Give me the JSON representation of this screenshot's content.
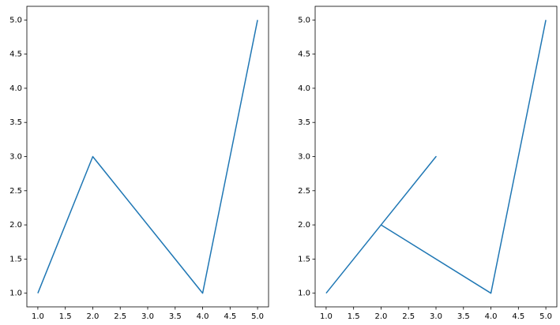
{
  "chart_data": [
    {
      "type": "line",
      "color": "#1f77b4",
      "x": [
        1,
        2,
        4,
        5
      ],
      "values": [
        1,
        3,
        1,
        5
      ],
      "xlim": [
        0.8,
        5.2
      ],
      "ylim": [
        0.8,
        5.2
      ],
      "xticks": [
        {
          "value": 1,
          "label": "1.0"
        },
        {
          "value": 1.5,
          "label": "1.5"
        },
        {
          "value": 2,
          "label": "2.0"
        },
        {
          "value": 2.5,
          "label": "2.5"
        },
        {
          "value": 3,
          "label": "3.0"
        },
        {
          "value": 3.5,
          "label": "3.5"
        },
        {
          "value": 4,
          "label": "4.0"
        },
        {
          "value": 4.5,
          "label": "4.5"
        },
        {
          "value": 5,
          "label": "5.0"
        }
      ],
      "yticks": [
        {
          "value": 1,
          "label": "1.0"
        },
        {
          "value": 1.5,
          "label": "1.5"
        },
        {
          "value": 2,
          "label": "2.0"
        },
        {
          "value": 2.5,
          "label": "2.5"
        },
        {
          "value": 3,
          "label": "3.0"
        },
        {
          "value": 3.5,
          "label": "3.5"
        },
        {
          "value": 4,
          "label": "4.0"
        },
        {
          "value": 4.5,
          "label": "4.5"
        },
        {
          "value": 5,
          "label": "5.0"
        }
      ]
    },
    {
      "type": "line",
      "color": "#1f77b4",
      "x": [
        1,
        2,
        3,
        2,
        4,
        5
      ],
      "values": [
        1,
        2,
        3,
        2,
        1,
        5
      ],
      "xlim": [
        0.8,
        5.2
      ],
      "ylim": [
        0.8,
        5.2
      ],
      "xticks": [
        {
          "value": 1,
          "label": "1.0"
        },
        {
          "value": 1.5,
          "label": "1.5"
        },
        {
          "value": 2,
          "label": "2.0"
        },
        {
          "value": 2.5,
          "label": "2.5"
        },
        {
          "value": 3,
          "label": "3.0"
        },
        {
          "value": 3.5,
          "label": "3.5"
        },
        {
          "value": 4,
          "label": "4.0"
        },
        {
          "value": 4.5,
          "label": "4.5"
        },
        {
          "value": 5,
          "label": "5.0"
        }
      ],
      "yticks": [
        {
          "value": 1,
          "label": "1.0"
        },
        {
          "value": 1.5,
          "label": "1.5"
        },
        {
          "value": 2,
          "label": "2.0"
        },
        {
          "value": 2.5,
          "label": "2.5"
        },
        {
          "value": 3,
          "label": "3.0"
        },
        {
          "value": 3.5,
          "label": "3.5"
        },
        {
          "value": 4,
          "label": "4.0"
        },
        {
          "value": 4.5,
          "label": "4.5"
        },
        {
          "value": 5,
          "label": "5.0"
        }
      ]
    }
  ]
}
